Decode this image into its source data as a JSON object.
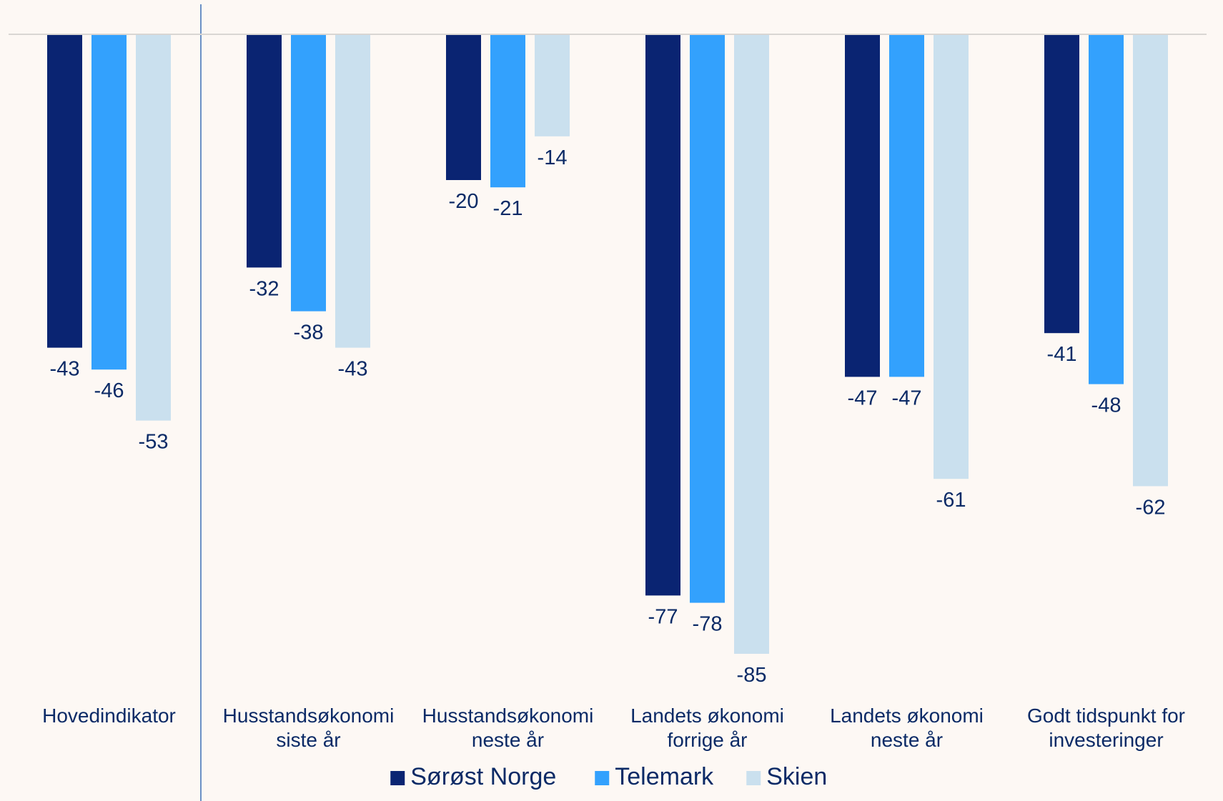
{
  "chart_data": {
    "type": "bar",
    "orientation": "vertical",
    "categories": [
      [
        "Hovedindikator"
      ],
      [
        "Husstandsøkonomi",
        "siste år"
      ],
      [
        "Husstandsøkonomi",
        "neste år"
      ],
      [
        "Landets økonomi",
        "forrige år"
      ],
      [
        "Landets økonomi",
        "neste år"
      ],
      [
        "Godt tidspunkt for",
        "investeringer"
      ]
    ],
    "series": [
      {
        "name": "Sørøst Norge",
        "color": "#0a2472",
        "values": [
          -43,
          -32,
          -20,
          -77,
          -47,
          -41
        ]
      },
      {
        "name": "Telemark",
        "color": "#33a1fd",
        "values": [
          -46,
          -38,
          -21,
          -78,
          -47,
          -48
        ]
      },
      {
        "name": "Skien",
        "color": "#cae0ee",
        "values": [
          -53,
          -43,
          -14,
          -85,
          -61,
          -62
        ]
      }
    ],
    "ylim": [
      -85,
      0
    ],
    "data_labels": true,
    "grid": false,
    "legend": "bottom-center",
    "separator_after_first_category": true
  },
  "colors": {
    "background": "#fdf8f4",
    "text": "#0b2a66",
    "baseline": "#d9d6d3",
    "separator": "#3b6fb6"
  }
}
